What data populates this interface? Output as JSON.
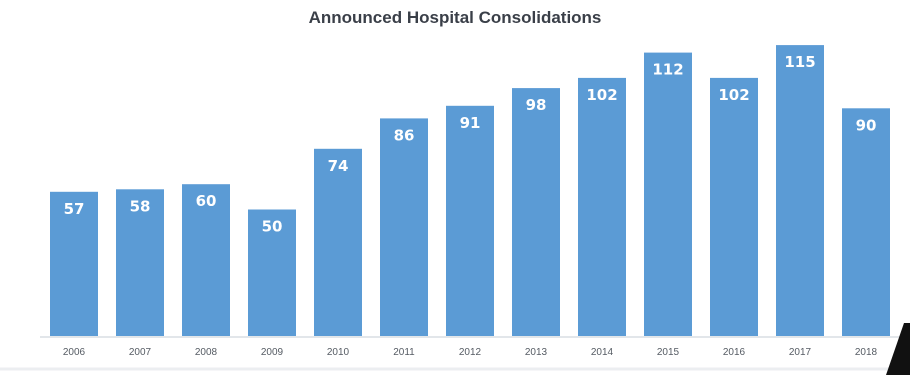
{
  "chart_data": {
    "type": "bar",
    "title": "Announced Hospital Consolidations",
    "categories": [
      "2006",
      "2007",
      "2008",
      "2009",
      "2010",
      "2011",
      "2012",
      "2013",
      "2014",
      "2015",
      "2016",
      "2017",
      "2018"
    ],
    "values": [
      57,
      58,
      60,
      50,
      74,
      86,
      91,
      98,
      102,
      112,
      102,
      115,
      90
    ],
    "xlabel": "",
    "ylabel": "",
    "ylim": [
      0,
      118
    ],
    "grid": false,
    "legend": "none",
    "bar_color": "#5b9bd5",
    "label_color": "#ffffff",
    "data_labels": "inside-top"
  }
}
